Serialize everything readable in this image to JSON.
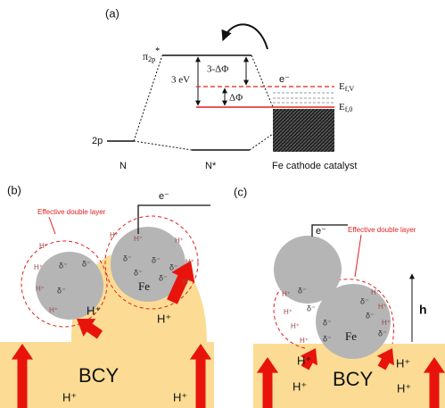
{
  "panel_a": {
    "label": "(a)",
    "pi_level": {
      "main": "π",
      "sub": "2p",
      "sup": "*"
    },
    "gap_label": "3 eV",
    "shifted_gap_label": "3-ΔΦ",
    "delta_phi": "ΔΦ",
    "electron": "e⁻",
    "fermi_vacuum": {
      "main": "E",
      "sub": "f,V"
    },
    "fermi_zero": {
      "main": "E",
      "sub": "f,0"
    },
    "level_2p": "2p",
    "column_labels": [
      "N",
      "N*",
      "Fe cathode catalyst"
    ]
  },
  "panel_b": {
    "label": "(b)",
    "electron": "e⁻",
    "double_layer": "Effective double layer",
    "proton_labels": [
      "H⁺",
      "H⁺",
      "H⁺",
      "H⁺"
    ],
    "layer_protons": [
      "H⁺",
      "H⁺",
      "H⁺",
      "H⁺",
      "H⁺",
      "H⁺",
      "H⁺",
      "H⁺",
      "H⁺"
    ],
    "surface_charges": [
      "δ⁻",
      "δ⁻",
      "δ⁻",
      "δ⁻",
      "δ⁻",
      "δ⁻",
      "δ⁻",
      "δ⁻"
    ],
    "metal": "Fe",
    "substrate": "BCY"
  },
  "panel_c": {
    "label": "(c)",
    "electron": "e⁻",
    "double_layer": "Effective double layer",
    "height": "h",
    "proton_labels": [
      "H⁺",
      "H⁺",
      "H⁺",
      "H⁺"
    ],
    "layer_protons": [
      "H⁺",
      "H⁺",
      "H⁺",
      "H⁺",
      "H⁺",
      "H⁺",
      "H⁺"
    ],
    "surface_charges": [
      "δ⁻",
      "δ⁻",
      "δ⁻",
      "δ⁻",
      "δ⁻",
      "δ⁻",
      "δ⁻"
    ],
    "metal": "Fe",
    "substrate": "BCY"
  }
}
